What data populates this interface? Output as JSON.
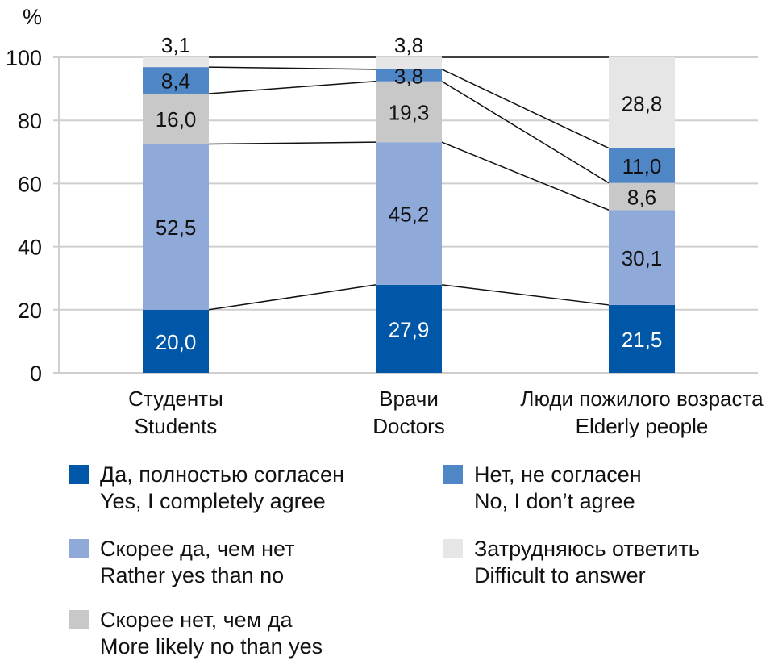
{
  "chart_data": {
    "type": "bar",
    "stacked": true,
    "title": "",
    "ylabel": "%",
    "xlabel": "",
    "ylim": [
      0,
      100
    ],
    "yticks": [
      0,
      20,
      40,
      60,
      80,
      100
    ],
    "grid": true,
    "legend_position": "bottom",
    "categories": [
      {
        "ru": "Студенты",
        "en": "Students"
      },
      {
        "ru": "Врачи",
        "en": "Doctors"
      },
      {
        "ru": "Люди пожилого возраста",
        "en": "Elderly people"
      }
    ],
    "series": [
      {
        "name_ru": "Да, полностью согласен",
        "name_en": "Yes, I completely agree",
        "color": "#0057A8",
        "label_color": "#ffffff",
        "values": [
          20.0,
          27.9,
          21.5
        ],
        "labels": [
          "20,0",
          "27,9",
          "21,5"
        ]
      },
      {
        "name_ru": "Скорее да, чем нет",
        "name_en": "Rather yes than no",
        "color": "#8FA9D8",
        "label_color": "#111111",
        "values": [
          52.5,
          45.2,
          30.1
        ],
        "labels": [
          "52,5",
          "45,2",
          "30,1"
        ]
      },
      {
        "name_ru": "Скорее нет, чем да",
        "name_en": "More likely no than yes",
        "color": "#C8C8C8",
        "label_color": "#111111",
        "values": [
          16.0,
          19.3,
          8.6
        ],
        "labels": [
          "16,0",
          "19,3",
          "8,6"
        ]
      },
      {
        "name_ru": "Нет, не согласен",
        "name_en": "No, I don’t agree",
        "color": "#4F86C6",
        "label_color": "#111111",
        "values": [
          8.4,
          3.8,
          11.0
        ],
        "labels": [
          "8,4",
          "3,8",
          "11,0"
        ]
      },
      {
        "name_ru": "Затрудняюсь ответить",
        "name_en": "Difficult to answer",
        "color": "#E6E6E6",
        "label_color": "#111111",
        "values": [
          3.1,
          3.8,
          28.8
        ],
        "labels": [
          "3,1",
          "3,8",
          "28,8"
        ]
      }
    ],
    "connector_lines": true
  }
}
